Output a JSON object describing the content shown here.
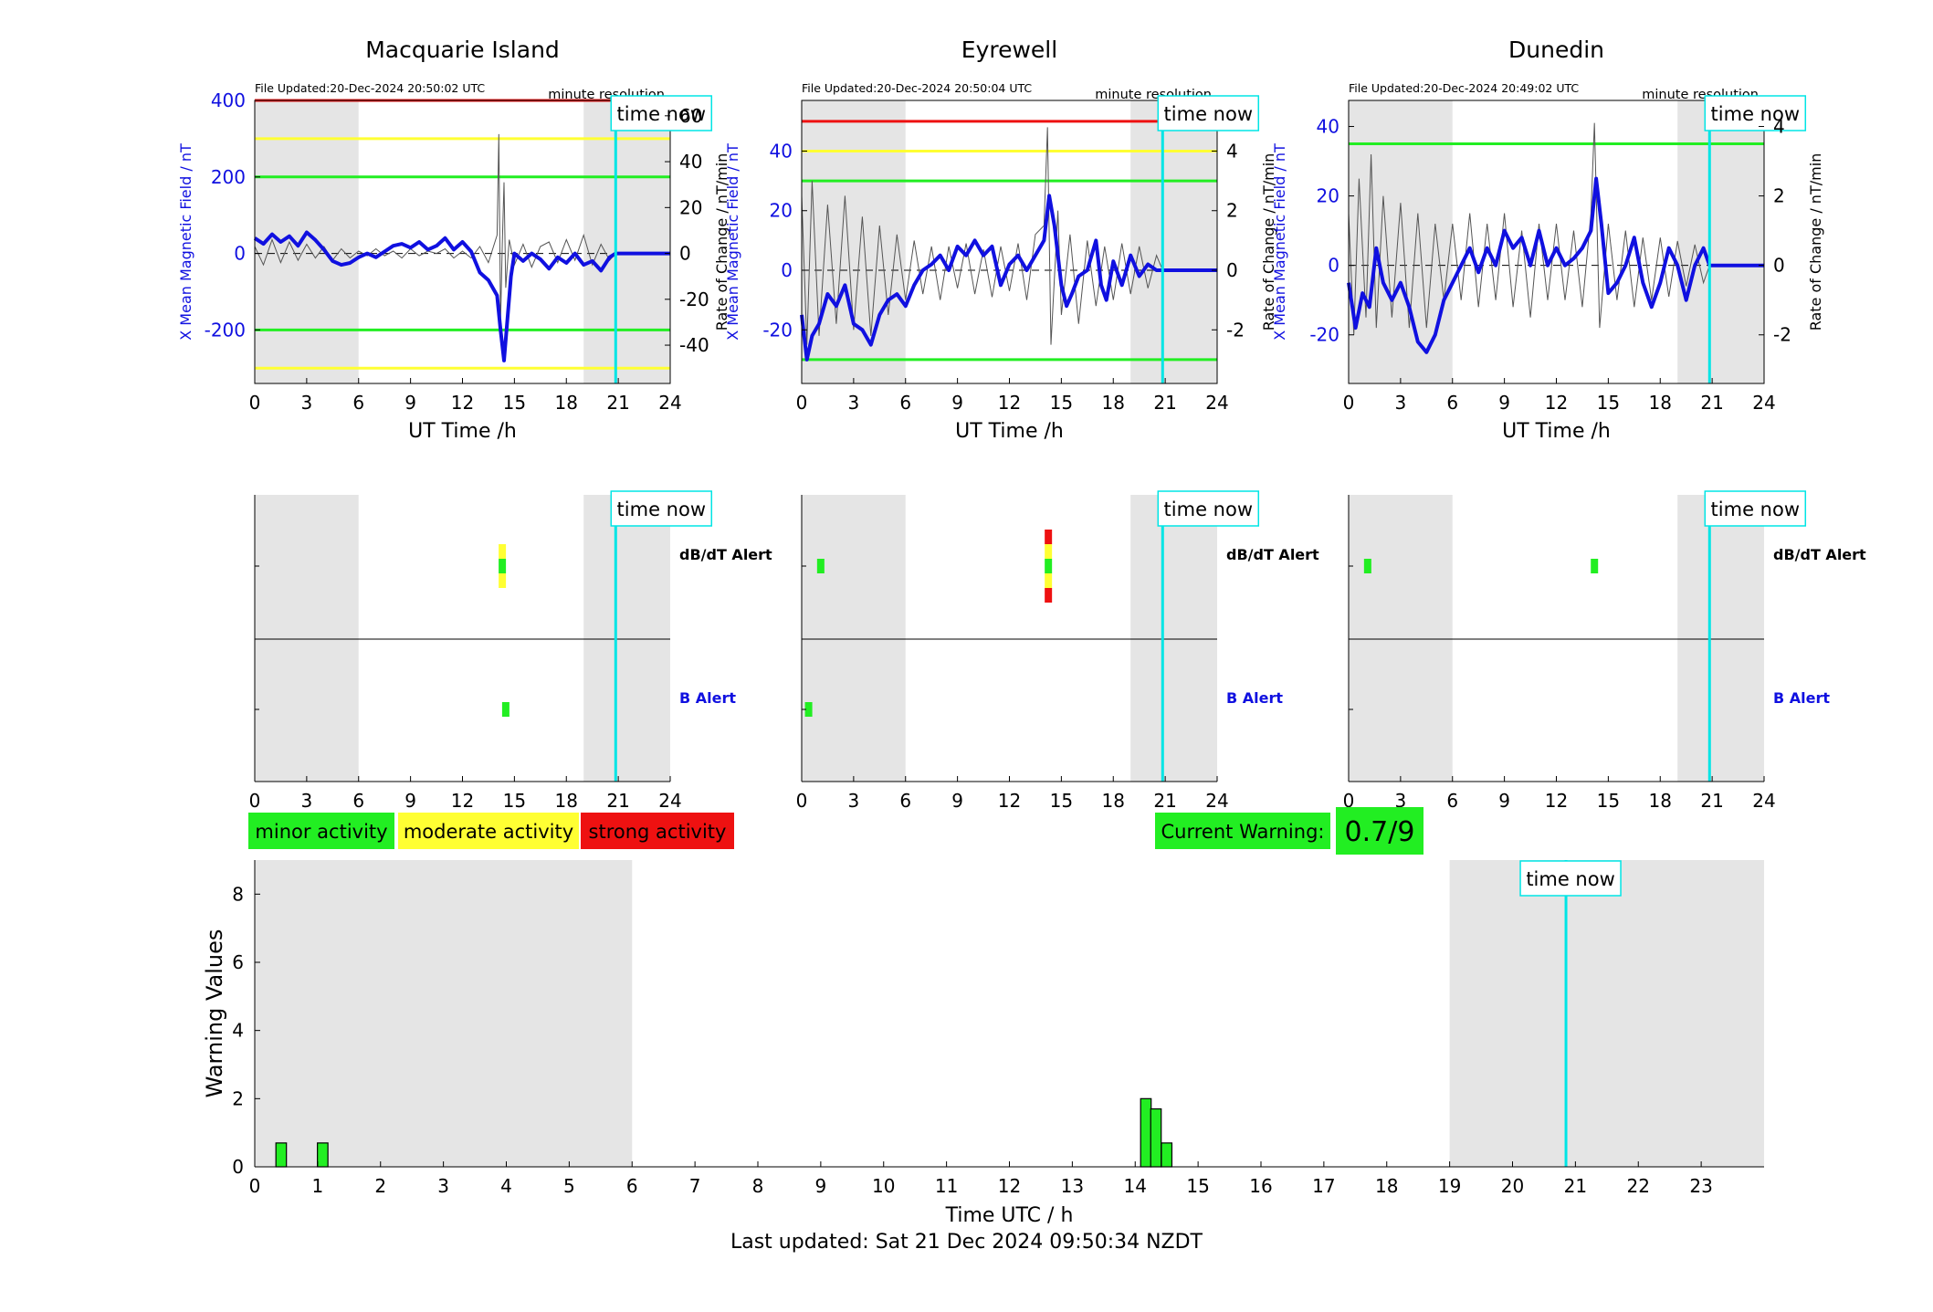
{
  "page": {
    "last_updated": "Last updated: Sat 21 Dec 2024 09:50:34 NZDT"
  },
  "common": {
    "time_now_label": "time now",
    "resolution_label": "minute resolution",
    "x_axis_label": "UT Time /h",
    "left_axis_label": "X Mean Magnetic Field / nT",
    "right_axis_label": "Rate of Change / nT/min",
    "dbdt_alert_label": "dB/dT Alert",
    "b_alert_label": "B Alert",
    "time_now_hour": 20.85,
    "night_shading_hours": [
      [
        0,
        6
      ],
      [
        19,
        24
      ]
    ],
    "xticks": [
      0,
      3,
      6,
      9,
      12,
      15,
      18,
      21,
      24
    ],
    "colors": {
      "field_trace": "#1010e0",
      "rate_trace": "#555555",
      "shading": "#e5e5e5",
      "time_now": "#00e5e5",
      "minor": "#22ee22",
      "moderate": "#ffff33",
      "strong": "#ee1111"
    }
  },
  "chart_data": [
    {
      "type": "line",
      "station": "Macquarie Island",
      "file_updated": "File Updated:20-Dec-2024 20:50:02 UTC",
      "xlabel": "UT Time /h",
      "ylabel_left": "X Mean Magnetic Field / nT",
      "ylabel_right": "Rate of Change / nT/min",
      "xlim": [
        0,
        24
      ],
      "ylim_left": [
        -340,
        400
      ],
      "ylim_right": [
        -56.7,
        66.7
      ],
      "yticks_left": [
        -200,
        0,
        200,
        400
      ],
      "yticks_right": [
        -40,
        -20,
        0,
        20,
        40,
        60
      ],
      "threshold_lines": [
        {
          "value": 400,
          "color": "red"
        },
        {
          "value": 300,
          "color": "yellow"
        },
        {
          "value": 200,
          "color": "green"
        },
        {
          "value": -200,
          "color": "green"
        },
        {
          "value": -300,
          "color": "yellow"
        }
      ],
      "field_series": {
        "x": [
          0,
          0.5,
          1,
          1.5,
          2,
          2.5,
          3,
          3.5,
          4,
          4.5,
          5,
          5.5,
          6,
          6.5,
          7,
          7.5,
          8,
          8.5,
          9,
          9.5,
          10,
          10.5,
          11,
          11.5,
          12,
          12.5,
          13,
          13.5,
          14,
          14.2,
          14.4,
          14.6,
          14.8,
          15,
          15.5,
          16,
          16.5,
          17,
          17.5,
          18,
          18.5,
          19,
          19.5,
          20,
          20.5,
          20.85,
          24
        ],
        "values": [
          40,
          25,
          50,
          30,
          45,
          20,
          55,
          35,
          10,
          -20,
          -30,
          -25,
          -10,
          0,
          -10,
          5,
          20,
          25,
          15,
          30,
          10,
          20,
          40,
          10,
          30,
          5,
          -50,
          -70,
          -110,
          -200,
          -280,
          -170,
          -60,
          0,
          -20,
          0,
          -15,
          -40,
          -10,
          -25,
          0,
          -30,
          -20,
          -45,
          -10,
          0,
          0
        ]
      },
      "rate_series": {
        "x": [
          0,
          0.5,
          1,
          1.5,
          2,
          2.5,
          3,
          3.5,
          4,
          4.5,
          5,
          5.5,
          6,
          6.5,
          7,
          7.5,
          8,
          8.5,
          9,
          9.5,
          10,
          10.5,
          11,
          11.5,
          12,
          12.5,
          13,
          13.5,
          14,
          14.1,
          14.2,
          14.3,
          14.4,
          14.5,
          14.7,
          15,
          15.5,
          16,
          16.5,
          17,
          17.5,
          18,
          18.5,
          19,
          19.5,
          20,
          20.5,
          20.85
        ],
        "values": [
          3,
          -5,
          6,
          -4,
          5,
          -3,
          4,
          -2,
          3,
          -3,
          2,
          -2,
          1,
          -1,
          2,
          -1,
          1,
          -2,
          2,
          -1,
          1,
          0,
          2,
          -2,
          1,
          -2,
          3,
          -4,
          8,
          52,
          -30,
          4,
          31,
          -15,
          6,
          -5,
          4,
          -6,
          3,
          5,
          -4,
          6,
          -3,
          8,
          -5,
          4,
          -3,
          0
        ]
      },
      "dbdt_alert_bars": [
        {
          "hour": 14.3,
          "levels": [
            "moderate",
            "minor",
            "moderate"
          ]
        }
      ],
      "b_alert_bars": [
        {
          "hour": 14.5,
          "levels": [
            "minor"
          ]
        }
      ]
    },
    {
      "type": "line",
      "station": "Eyrewell",
      "file_updated": "File Updated:20-Dec-2024 20:50:04 UTC",
      "xlabel": "UT Time /h",
      "ylabel_left": "X Mean Magnetic Field / nT",
      "ylabel_right": "Rate of Change / nT/min",
      "xlim": [
        0,
        24
      ],
      "ylim_left": [
        -38,
        57
      ],
      "ylim_right": [
        -3.8,
        5.7
      ],
      "yticks_left": [
        -20,
        0,
        20,
        40
      ],
      "yticks_right": [
        -2,
        0,
        2,
        4
      ],
      "threshold_lines": [
        {
          "value": 50,
          "color": "red"
        },
        {
          "value": 40,
          "color": "yellow"
        },
        {
          "value": 30,
          "color": "green"
        },
        {
          "value": -30,
          "color": "green"
        }
      ],
      "field_series": {
        "x": [
          0,
          0.3,
          0.6,
          1,
          1.5,
          2,
          2.5,
          3,
          3.5,
          4,
          4.5,
          5,
          5.5,
          6,
          6.5,
          7,
          7.5,
          8,
          8.5,
          9,
          9.5,
          10,
          10.5,
          11,
          11.5,
          12,
          12.5,
          13,
          13.5,
          14,
          14.3,
          14.6,
          15,
          15.3,
          15.6,
          16,
          16.5,
          17,
          17.3,
          17.6,
          18,
          18.5,
          19,
          19.5,
          20,
          20.5,
          20.85,
          24
        ],
        "values": [
          -15,
          -30,
          -22,
          -18,
          -8,
          -12,
          -5,
          -18,
          -20,
          -25,
          -15,
          -10,
          -8,
          -12,
          -5,
          0,
          2,
          5,
          0,
          8,
          5,
          10,
          5,
          8,
          -5,
          2,
          5,
          0,
          5,
          10,
          25,
          15,
          -5,
          -12,
          -8,
          -2,
          0,
          10,
          -5,
          -10,
          3,
          -5,
          5,
          -2,
          2,
          0,
          0,
          0
        ]
      },
      "rate_series": {
        "x": [
          0,
          0.3,
          0.6,
          1,
          1.5,
          2,
          2.5,
          3,
          3.5,
          4,
          4.5,
          5,
          5.5,
          6,
          6.5,
          7,
          7.5,
          8,
          8.5,
          9,
          9.5,
          10,
          10.5,
          11,
          11.5,
          12,
          12.5,
          13,
          13.5,
          14,
          14.2,
          14.4,
          14.8,
          15,
          15.5,
          16,
          16.5,
          17,
          17.5,
          18,
          18.5,
          19,
          19.5,
          20,
          20.5,
          20.85
        ],
        "values": [
          2.5,
          -2.5,
          3.0,
          -2.2,
          2.2,
          -1.8,
          2.5,
          -2.0,
          1.8,
          -2.2,
          1.5,
          -1.5,
          1.2,
          -1.0,
          1.0,
          -0.8,
          0.8,
          -1.0,
          0.8,
          -0.6,
          0.9,
          -0.8,
          0.7,
          -0.9,
          0.8,
          -0.7,
          0.9,
          -1.0,
          1.2,
          1.5,
          4.8,
          -2.5,
          2.0,
          -1.5,
          1.2,
          -1.8,
          1.0,
          -1.2,
          0.8,
          -1.0,
          0.9,
          -0.8,
          0.8,
          -0.6,
          0.5,
          0
        ]
      },
      "dbdt_alert_bars": [
        {
          "hour": 1.1,
          "levels": [
            "minor"
          ]
        },
        {
          "hour": 14.25,
          "levels": [
            "strong",
            "moderate",
            "minor",
            "moderate",
            "strong"
          ]
        }
      ],
      "b_alert_bars": [
        {
          "hour": 0.4,
          "levels": [
            "minor"
          ]
        }
      ]
    },
    {
      "type": "line",
      "station": "Dunedin",
      "file_updated": "File Updated:20-Dec-2024 20:49:02 UTC",
      "xlabel": "UT Time /h",
      "ylabel_left": "X Mean Magnetic Field / nT",
      "ylabel_right": "Rate of Change / nT/min",
      "xlim": [
        0,
        24
      ],
      "ylim_left": [
        -34,
        47.5
      ],
      "ylim_right": [
        -3.4,
        4.75
      ],
      "yticks_left": [
        -20,
        0,
        20,
        40
      ],
      "yticks_right": [
        -2,
        0,
        2,
        4
      ],
      "threshold_lines": [
        {
          "value": 35,
          "color": "green"
        }
      ],
      "field_series": {
        "x": [
          0,
          0.4,
          0.8,
          1.2,
          1.6,
          2,
          2.5,
          3,
          3.5,
          4,
          4.5,
          5,
          5.5,
          6,
          6.5,
          7,
          7.5,
          8,
          8.5,
          9,
          9.5,
          10,
          10.5,
          11,
          11.5,
          12,
          12.5,
          13,
          13.5,
          14,
          14.3,
          14.6,
          15,
          15.5,
          16,
          16.5,
          17,
          17.5,
          18,
          18.5,
          19,
          19.5,
          20,
          20.5,
          20.85,
          24
        ],
        "values": [
          -5,
          -18,
          -8,
          -12,
          5,
          -5,
          -10,
          -5,
          -12,
          -22,
          -25,
          -20,
          -10,
          -5,
          0,
          5,
          -2,
          5,
          0,
          10,
          5,
          8,
          0,
          10,
          0,
          5,
          0,
          2,
          5,
          10,
          25,
          12,
          -8,
          -5,
          0,
          8,
          -5,
          -12,
          -5,
          5,
          0,
          -10,
          0,
          5,
          0,
          0
        ]
      },
      "rate_series": {
        "x": [
          0,
          0.3,
          0.6,
          1,
          1.3,
          1.6,
          2,
          2.5,
          3,
          3.5,
          4,
          4.5,
          5,
          5.5,
          6,
          6.5,
          7,
          7.5,
          8,
          8.5,
          9,
          9.5,
          10,
          10.5,
          11,
          11.5,
          12,
          12.5,
          13,
          13.5,
          14,
          14.2,
          14.5,
          15,
          15.5,
          16,
          16.5,
          17,
          17.5,
          18,
          18.5,
          19,
          19.5,
          20,
          20.5,
          20.85
        ],
        "values": [
          1.5,
          -2.0,
          2.5,
          -1.5,
          3.2,
          -1.8,
          2.0,
          -1.5,
          1.8,
          -1.8,
          1.5,
          -1.8,
          1.2,
          -1.0,
          1.2,
          -1.0,
          1.5,
          -1.2,
          1.2,
          -1.0,
          1.5,
          -1.2,
          1.0,
          -1.5,
          1.2,
          -1.0,
          1.2,
          -1.0,
          1.0,
          -1.2,
          1.5,
          4.1,
          -1.8,
          1.2,
          -1.0,
          1.0,
          -1.2,
          0.8,
          -1.0,
          0.8,
          -0.9,
          0.7,
          -0.6,
          0.6,
          -0.5,
          0
        ]
      },
      "dbdt_alert_bars": [
        {
          "hour": 1.1,
          "levels": [
            "minor"
          ]
        },
        {
          "hour": 14.2,
          "levels": [
            "minor"
          ]
        }
      ],
      "b_alert_bars": []
    },
    {
      "type": "bar",
      "title": "",
      "xlabel": "Time UTC / h",
      "ylabel": "Warning Values",
      "xlim": [
        0,
        24
      ],
      "ylim": [
        0,
        9
      ],
      "xticks": [
        0,
        1,
        2,
        3,
        4,
        5,
        6,
        7,
        8,
        9,
        10,
        11,
        12,
        13,
        14,
        15,
        16,
        17,
        18,
        19,
        20,
        21,
        22,
        23
      ],
      "yticks": [
        0,
        2,
        4,
        6,
        8
      ],
      "bar_width_hours": 0.167,
      "x": [
        0.42,
        1.08,
        14.17,
        14.33,
        14.5
      ],
      "values": [
        0.7,
        0.7,
        2.0,
        1.7,
        0.7
      ],
      "night_shading_hours": [
        [
          0,
          6
        ],
        [
          19,
          24
        ]
      ],
      "time_now_hour": 20.85
    }
  ],
  "legend": {
    "minor": "minor activity",
    "moderate": "moderate activity",
    "strong": "strong activity"
  },
  "warning": {
    "label": "Current Warning:",
    "value": "0.7/9"
  }
}
